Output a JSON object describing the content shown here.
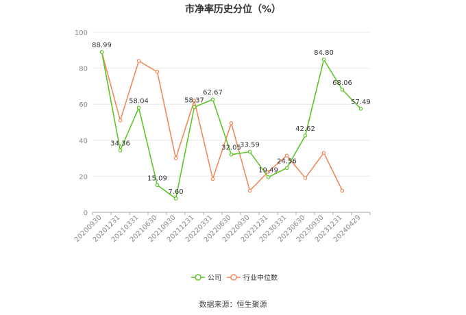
{
  "chart_data": {
    "type": "line",
    "title": "市净率历史分位（%）",
    "categories": [
      "20200930",
      "20201231",
      "20210331",
      "20210630",
      "20210930",
      "20211231",
      "20220331",
      "20220630",
      "20220930",
      "20221231",
      "20230331",
      "20230630",
      "20230930",
      "20231231",
      "20240429"
    ],
    "series": [
      {
        "name": "公司",
        "color": "#5ec427",
        "values": [
          88.99,
          34.36,
          58.04,
          15.09,
          7.6,
          58.37,
          62.67,
          32.05,
          33.59,
          19.49,
          24.56,
          42.62,
          84.8,
          68.06,
          57.49
        ]
      },
      {
        "name": "行业中位数",
        "color": "#f08a5d",
        "values": [
          89.0,
          51.0,
          84.0,
          78.0,
          30.0,
          62.0,
          18.5,
          49.5,
          12.0,
          22.5,
          31.5,
          19.0,
          33.0,
          12.0,
          null
        ]
      }
    ],
    "yticks": [
      0,
      20,
      40,
      60,
      80,
      100
    ],
    "ylim": [
      0,
      100
    ],
    "legend_position": "bottom"
  },
  "source_text": "数据来源：恒生聚源"
}
